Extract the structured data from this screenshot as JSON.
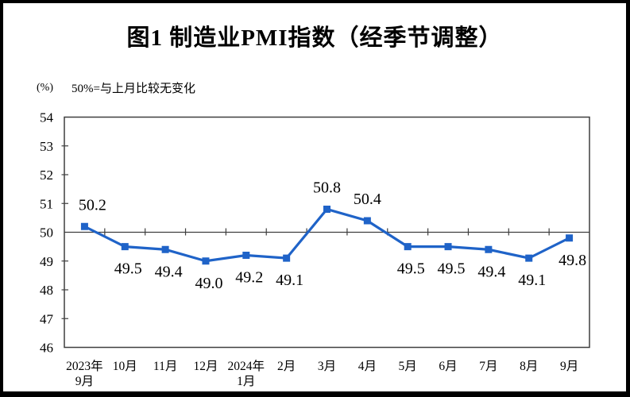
{
  "title": "图1 制造业PMI指数（经季节调整）",
  "unit_label": "(%)",
  "note": "50%=与上月比较无变化",
  "chart_data": {
    "type": "line",
    "title": "图1 制造业PMI指数（经季节调整）",
    "ylabel": "(%)",
    "annotation": "50%=与上月比较无变化",
    "x": [
      "2023年\n9月",
      "10月",
      "11月",
      "12月",
      "2024年\n1月",
      "2月",
      "3月",
      "4月",
      "5月",
      "6月",
      "7月",
      "8月",
      "9月"
    ],
    "series": [
      {
        "name": "制造业PMI指数",
        "values": [
          50.2,
          49.5,
          49.4,
          49.0,
          49.2,
          49.1,
          50.8,
          50.4,
          49.5,
          49.5,
          49.4,
          49.1,
          49.8
        ]
      }
    ],
    "data_labels": [
      "50.2",
      "49.5",
      "49.4",
      "49.0",
      "49.2",
      "49.1",
      "50.8",
      "50.4",
      "49.5",
      "49.5",
      "49.4",
      "49.1",
      "49.8"
    ],
    "ylim": [
      46,
      54
    ],
    "y_ticks": [
      46,
      47,
      48,
      49,
      50,
      51,
      52,
      53,
      54
    ],
    "reference_line": 50,
    "grid": "off",
    "legend": "none",
    "line_color": "#1F63C8",
    "axis_color": "#3F3F3F"
  }
}
